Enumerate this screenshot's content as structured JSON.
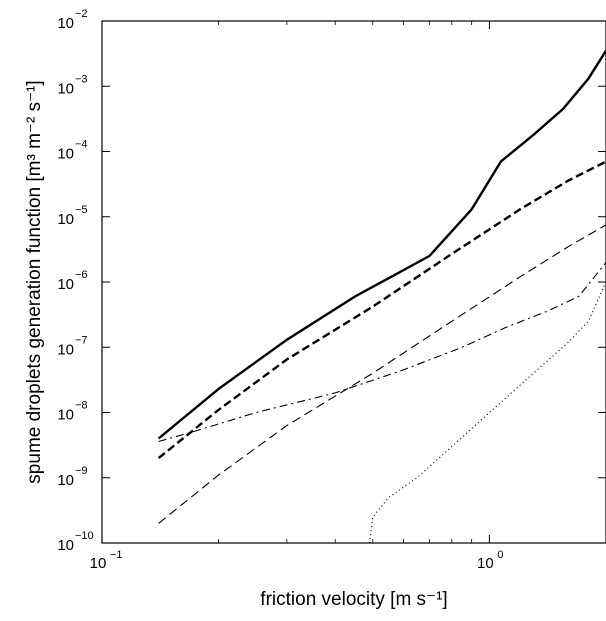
{
  "chart_data": {
    "type": "line",
    "xscale": "log",
    "yscale": "log",
    "xlim": [
      0.1,
      2
    ],
    "ylim": [
      1e-10,
      0.01
    ],
    "grid": false,
    "legend": "none",
    "xlabel": "friction velocity [m s⁻¹]",
    "ylabel": "spume droplets generation function  [m³ m⁻² s⁻¹]",
    "x_ticks": [
      {
        "base": "10",
        "exp": "−1",
        "value": 0.1
      },
      {
        "base": "10",
        "exp": "0",
        "value": 1
      }
    ],
    "y_ticks": [
      {
        "base": "10",
        "exp": "−10",
        "value": 1e-10
      },
      {
        "base": "10",
        "exp": "−9",
        "value": 1e-09
      },
      {
        "base": "10",
        "exp": "−8",
        "value": 1e-08
      },
      {
        "base": "10",
        "exp": "−7",
        "value": 1e-07
      },
      {
        "base": "10",
        "exp": "−6",
        "value": 1e-06
      },
      {
        "base": "10",
        "exp": "−5",
        "value": 1e-05
      },
      {
        "base": "10",
        "exp": "−4",
        "value": 0.0001
      },
      {
        "base": "10",
        "exp": "−3",
        "value": 0.001
      },
      {
        "base": "10",
        "exp": "−2",
        "value": 0.01
      }
    ],
    "series": [
      {
        "style": "solid-thick",
        "x": [
          0.14,
          0.2,
          0.3,
          0.45,
          0.7,
          0.9,
          1.07,
          1.3,
          1.55,
          1.8,
          2.0
        ],
        "y": [
          4e-09,
          2.3e-08,
          1.3e-07,
          6e-07,
          2.5e-06,
          1.3e-05,
          7e-05,
          0.00018,
          0.00045,
          0.0013,
          0.0035
        ]
      },
      {
        "style": "dashed-thick",
        "x": [
          0.14,
          0.2,
          0.3,
          0.5,
          0.8,
          1.2,
          1.6,
          2.0
        ],
        "y": [
          2e-09,
          1.1e-08,
          6.5e-08,
          4.2e-07,
          2.7e-06,
          1.3e-05,
          3.6e-05,
          7e-05
        ]
      },
      {
        "style": "dashed-thin",
        "x": [
          0.14,
          0.2,
          0.3,
          0.5,
          0.8,
          1.2,
          1.6,
          2.0
        ],
        "y": [
          2e-10,
          1.1e-09,
          6.3e-09,
          4e-08,
          2.5e-07,
          1.2e-06,
          3.5e-06,
          7.5e-06
        ]
      },
      {
        "style": "dashdot",
        "x": [
          0.14,
          0.18,
          0.25,
          0.4,
          0.6,
          0.85,
          1.1,
          1.4,
          1.7,
          2.0
        ],
        "y": [
          3.6e-09,
          5.5e-09,
          1e-08,
          2e-08,
          4.5e-08,
          1e-07,
          2e-07,
          3.5e-07,
          6e-07,
          2e-06
        ]
      },
      {
        "style": "dotted",
        "x": [
          0.49,
          0.5,
          0.55,
          0.65,
          0.8,
          1.0,
          1.3,
          1.6,
          1.8,
          2.0
        ],
        "y": [
          1e-10,
          2.5e-10,
          5e-10,
          1e-09,
          3e-09,
          1e-08,
          4e-08,
          1.2e-07,
          2.5e-07,
          1e-06
        ]
      }
    ]
  }
}
